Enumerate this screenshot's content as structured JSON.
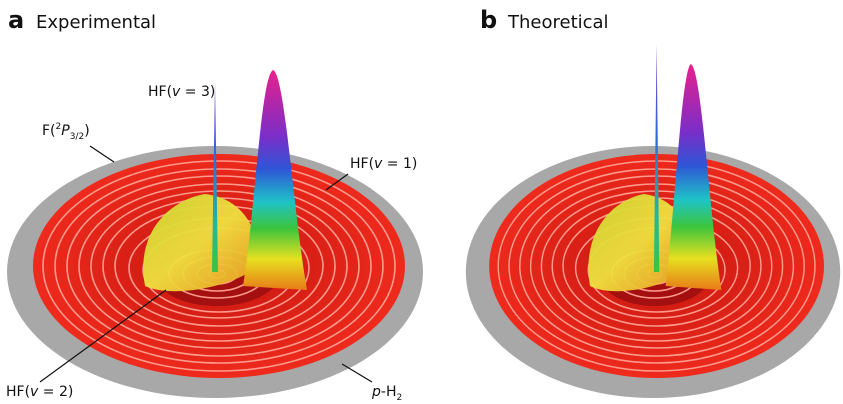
{
  "panels": [
    {
      "letter": "a",
      "title": "Experimental",
      "labels": {
        "hf_v3": [
          "HF(",
          "v",
          " = 3)"
        ],
        "f_2p32": [
          "F(",
          "2",
          "P",
          "3/2",
          ")"
        ],
        "hf_v1": [
          "HF(",
          "v",
          " = 1)"
        ],
        "hf_v2": [
          "HF(",
          "v",
          " = 2)"
        ],
        "p_h2": [
          "p",
          "-H",
          "2"
        ]
      }
    },
    {
      "letter": "b",
      "title": "Theoretical"
    }
  ]
}
